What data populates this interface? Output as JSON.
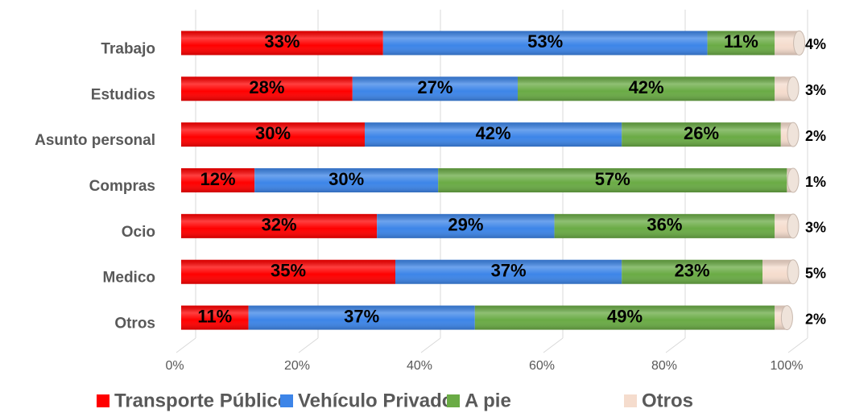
{
  "chart_data": {
    "type": "stacked_bar_horizontal",
    "categories": [
      "Trabajo",
      "Estudios",
      "Asunto personal",
      "Compras",
      "Ocio",
      "Medico",
      "Otros"
    ],
    "series": [
      {
        "name": "Transporte Público",
        "color": "#ff0000",
        "values": [
          33,
          28,
          30,
          12,
          32,
          35,
          11
        ],
        "value_labels": [
          "33%",
          "28%",
          "30%",
          "12%",
          "32%",
          "35%",
          "11%"
        ]
      },
      {
        "name": "Vehículo Privado",
        "color": "#3d85e8",
        "values": [
          53,
          27,
          42,
          30,
          29,
          37,
          37
        ],
        "value_labels": [
          "53%",
          "27%",
          "42%",
          "30%",
          "29%",
          "37%",
          "37%"
        ]
      },
      {
        "name": "A pie",
        "color": "#6aab45",
        "values": [
          11,
          42,
          26,
          57,
          36,
          23,
          49
        ],
        "value_labels": [
          "11%",
          "42%",
          "26%",
          "57%",
          "36%",
          "23%",
          "49%"
        ]
      },
      {
        "name": "Otros",
        "color": "#f5dccd",
        "values": [
          4,
          3,
          2,
          1,
          3,
          5,
          2
        ],
        "value_labels": [
          "4%",
          "3%",
          "2%",
          "1%",
          "3%",
          "5%",
          "2%"
        ]
      }
    ],
    "xlim": [
      0,
      100
    ],
    "xticks": [
      {
        "value": 0,
        "label": "0%"
      },
      {
        "value": 20,
        "label": "20%"
      },
      {
        "value": 40,
        "label": "40%"
      },
      {
        "value": 60,
        "label": "60%"
      },
      {
        "value": 80,
        "label": "80%"
      },
      {
        "value": 100,
        "label": "100%"
      }
    ],
    "grid": true,
    "legend": "bottom"
  }
}
